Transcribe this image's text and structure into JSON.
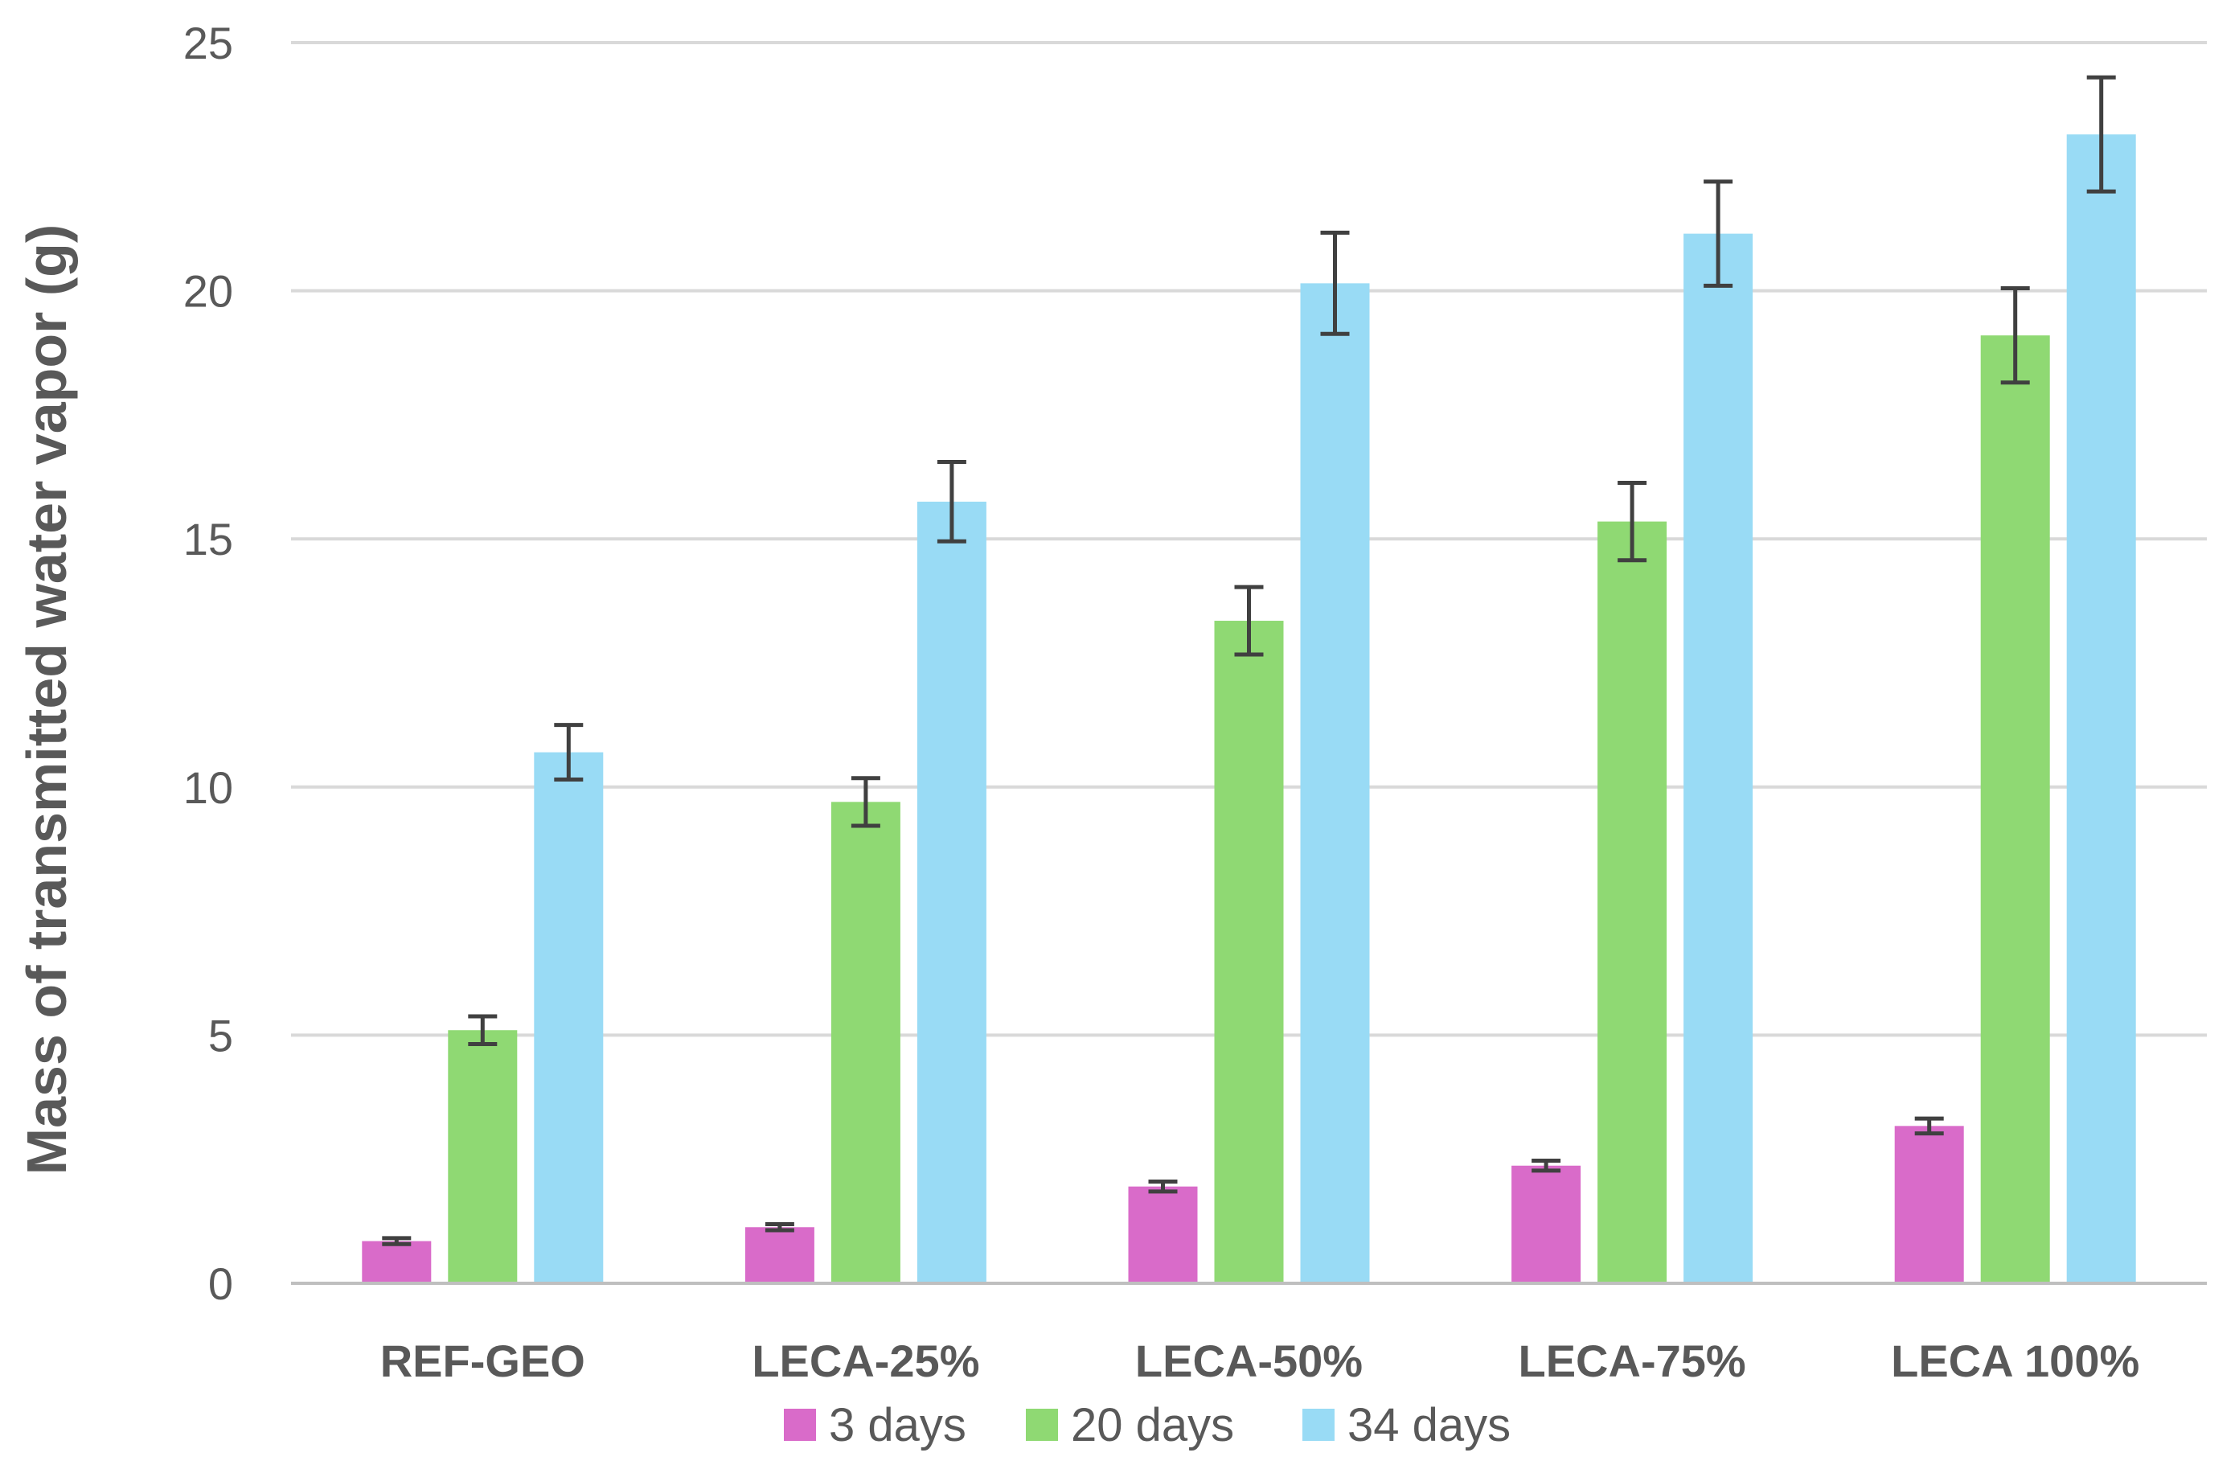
{
  "chart_data": {
    "type": "bar",
    "title": "",
    "xlabel": "",
    "ylabel": "Mass of transmitted water vapor (g)",
    "ylim": [
      0,
      25
    ],
    "yticks": [
      0,
      5,
      10,
      15,
      20,
      25
    ],
    "grid": true,
    "legend_position": "bottom",
    "categories": [
      "REF-GEO",
      "LECA-25%",
      "LECA-50%",
      "LECA-75%",
      "LECA 100%"
    ],
    "series": [
      {
        "name": "3 days",
        "color": "#d96bc9",
        "values": [
          0.85,
          1.13,
          1.95,
          2.37,
          3.17
        ],
        "errors": [
          0.06,
          0.06,
          0.1,
          0.1,
          0.15
        ]
      },
      {
        "name": "20 days",
        "color": "#8fd973",
        "values": [
          5.1,
          9.7,
          13.35,
          15.35,
          19.1
        ],
        "errors": [
          0.28,
          0.48,
          0.68,
          0.78,
          0.95
        ]
      },
      {
        "name": "34 days",
        "color": "#99dbf5",
        "values": [
          10.7,
          15.75,
          20.15,
          21.15,
          23.15
        ],
        "errors": [
          0.55,
          0.8,
          1.02,
          1.05,
          1.15
        ]
      }
    ],
    "error_bar_color": "#404040",
    "grid_color": "#d9d9d9",
    "axis_color": "#bfbfbf"
  }
}
